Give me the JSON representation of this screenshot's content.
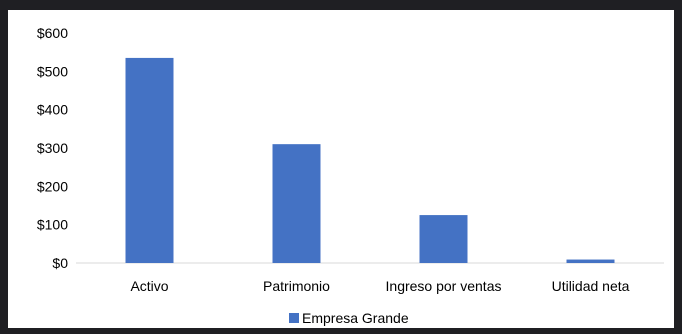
{
  "chart_data": {
    "type": "bar",
    "categories": [
      "Activo",
      "Patrimonio",
      "Ingreso por ventas",
      "Utilidad neta"
    ],
    "series": [
      {
        "name": "Empresa Grande",
        "values": [
          535,
          310,
          125,
          9
        ],
        "color": "#4472C4"
      }
    ],
    "ylim": [
      0,
      600
    ],
    "yticks": [
      "$0",
      "$100",
      "$200",
      "$300",
      "$400",
      "$500",
      "$600"
    ],
    "ytick_values": [
      0,
      100,
      200,
      300,
      400,
      500,
      600
    ],
    "grid": false,
    "legend": "bottom"
  }
}
